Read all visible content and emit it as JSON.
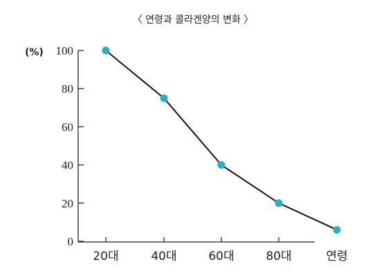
{
  "chart_data": {
    "type": "line",
    "title": "〈 연령과 콜라겐양의 변화 〉",
    "ylabel": "(%)",
    "xlabel": "연령",
    "categories": [
      "20대",
      "40대",
      "60대",
      "80대"
    ],
    "y_ticks": [
      "0",
      "20",
      "40",
      "60",
      "80",
      "100"
    ],
    "ylim": [
      0,
      100
    ],
    "grid": false,
    "legend": "none",
    "series": [
      {
        "x": [
          "20대",
          "40대",
          "60대",
          "80대",
          "연령"
        ],
        "values": [
          100,
          75,
          40,
          20,
          6
        ]
      }
    ],
    "colors": {
      "marker": "#2bafc0",
      "line": "#111111",
      "axis": "#222222"
    }
  }
}
